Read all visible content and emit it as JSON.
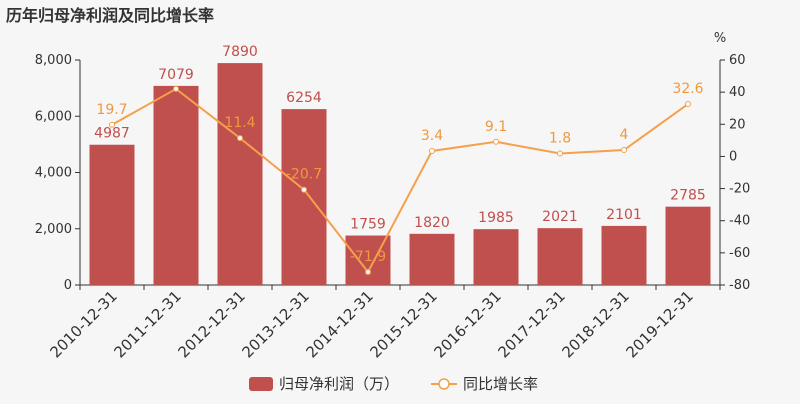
{
  "title": "历年归母净利润及同比增长率",
  "chart_data": {
    "type": "bar",
    "categories": [
      "2010-12-31",
      "2011-12-31",
      "2012-12-31",
      "2013-12-31",
      "2014-12-31",
      "2015-12-31",
      "2016-12-31",
      "2017-12-31",
      "2018-12-31",
      "2019-12-31"
    ],
    "series": [
      {
        "name": "归母净利润（万）",
        "type": "bar",
        "axis": "left",
        "values": [
          4987,
          7079,
          7890,
          6254,
          1759,
          1820,
          1985,
          2021,
          2101,
          2785
        ],
        "labels": [
          "4987",
          "7079",
          "7890",
          "6254",
          "1759",
          "1820",
          "1985",
          "2021",
          "2101",
          "2785"
        ]
      },
      {
        "name": "同比增长率",
        "type": "line",
        "axis": "right",
        "values": [
          19.7,
          42,
          11.4,
          -20.7,
          -71.9,
          3.4,
          9.1,
          1.8,
          4,
          32.6
        ],
        "labels": [
          "19.7",
          "",
          "11.4",
          "-20.7",
          "-71.9",
          "3.4",
          "9.1",
          "1.8",
          "4",
          "32.6"
        ]
      }
    ],
    "y_left": {
      "ylim": [
        0,
        8000
      ],
      "ticks": [
        0,
        2000,
        4000,
        6000,
        8000
      ],
      "tick_labels": [
        "0",
        "2,000",
        "4,000",
        "6,000",
        "8,000"
      ]
    },
    "y_right": {
      "label": "%",
      "ylim": [
        -80,
        60
      ],
      "ticks": [
        -80,
        -60,
        -40,
        -20,
        0,
        20,
        40,
        60
      ],
      "tick_labels": [
        "-80",
        "-60",
        "-40",
        "-20",
        "0",
        "20",
        "40",
        "60"
      ]
    },
    "colors": {
      "bar": "#c0504d",
      "bar_label": "#c0504d",
      "line": "#f5a04a",
      "line_label": "#f0983f",
      "axis": "#333333"
    },
    "legend_position": "bottom-center",
    "grid": false
  }
}
